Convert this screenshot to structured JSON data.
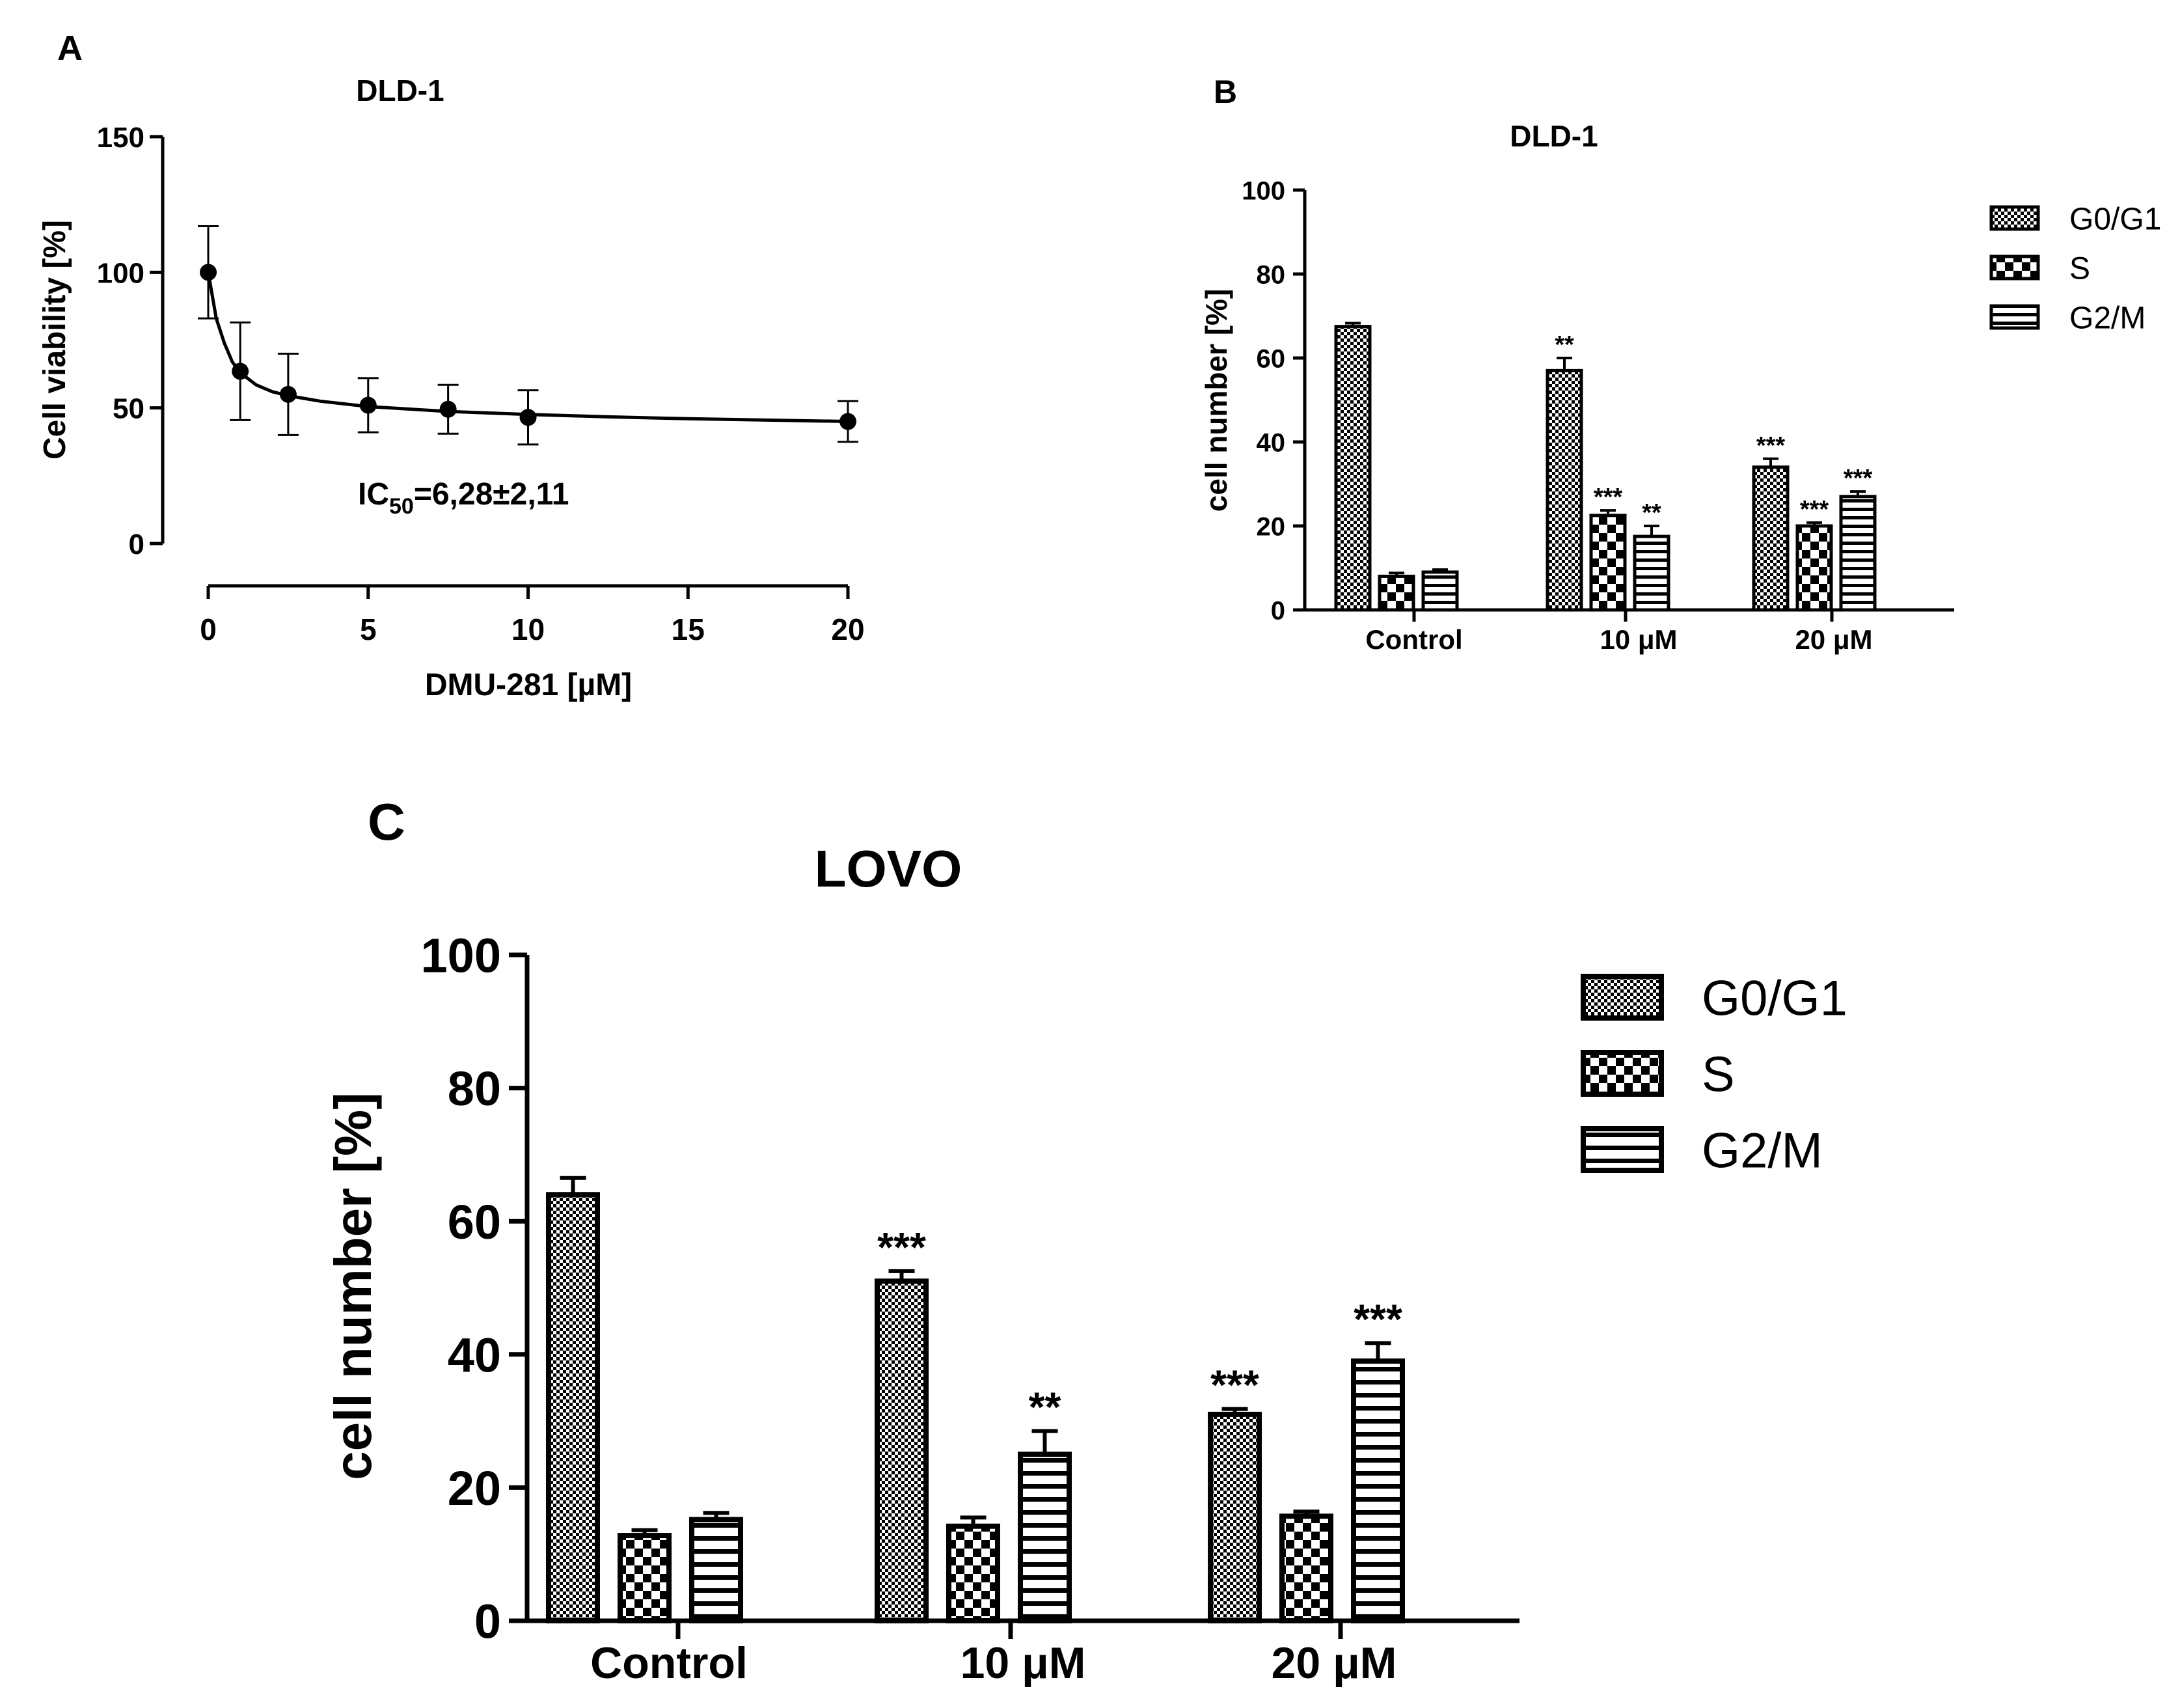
{
  "chart_data": [
    {
      "id": "A",
      "panel_label": "A",
      "type": "scatter",
      "title": "DLD-1",
      "xlabel": "DMU-281 [µM]",
      "ylabel": "Cell viability [%]",
      "xlim": [
        0,
        20
      ],
      "ylim": [
        0,
        150
      ],
      "xticks": [
        "0",
        "5",
        "10",
        "15",
        "20"
      ],
      "xtick_values": [
        0,
        5,
        10,
        15,
        20
      ],
      "yticks": [
        "0",
        "50",
        "100",
        "150"
      ],
      "ytick_values": [
        0,
        50,
        100,
        150
      ],
      "annotation": {
        "prefix": "IC",
        "sub": "50",
        "suffix": "=6,28±2,11"
      },
      "points": [
        {
          "x": 0,
          "y": 100,
          "err": 17
        },
        {
          "x": 1,
          "y": 63.5,
          "err": 18
        },
        {
          "x": 2.5,
          "y": 55,
          "err": 15
        },
        {
          "x": 5,
          "y": 51,
          "err": 10
        },
        {
          "x": 7.5,
          "y": 49.5,
          "err": 9
        },
        {
          "x": 10,
          "y": 46.5,
          "err": 10
        },
        {
          "x": 20,
          "y": 45,
          "err": 7.5
        }
      ],
      "curve": [
        {
          "x": 0,
          "y": 100
        },
        {
          "x": 0.25,
          "y": 83
        },
        {
          "x": 0.5,
          "y": 74
        },
        {
          "x": 0.75,
          "y": 67
        },
        {
          "x": 1,
          "y": 63
        },
        {
          "x": 1.5,
          "y": 58.5
        },
        {
          "x": 2,
          "y": 56
        },
        {
          "x": 2.5,
          "y": 54.5
        },
        {
          "x": 3.5,
          "y": 52.5
        },
        {
          "x": 5,
          "y": 50.5
        },
        {
          "x": 7.5,
          "y": 48.7
        },
        {
          "x": 10,
          "y": 47.6
        },
        {
          "x": 12.5,
          "y": 46.7
        },
        {
          "x": 15,
          "y": 46
        },
        {
          "x": 17.5,
          "y": 45.5
        },
        {
          "x": 20,
          "y": 45
        }
      ]
    },
    {
      "id": "B",
      "panel_label": "B",
      "type": "bar",
      "title": "DLD-1",
      "ylabel": "cell number [%]",
      "ylim": [
        0,
        100
      ],
      "yticks": [
        "0",
        "20",
        "40",
        "60",
        "80",
        "100"
      ],
      "ytick_values": [
        0,
        20,
        40,
        60,
        80,
        100
      ],
      "categories": [
        "Control",
        "10 μM",
        "20 μM"
      ],
      "legend": [
        "G0/G1",
        "S",
        "G2/M"
      ],
      "series": [
        {
          "name": "G0/G1",
          "values": [
            67.5,
            57,
            34
          ],
          "errors": [
            0.8,
            3,
            2
          ],
          "sig": [
            "",
            "**",
            "***"
          ]
        },
        {
          "name": "S",
          "values": [
            8,
            22.5,
            20
          ],
          "errors": [
            0.8,
            1.2,
            0.8
          ],
          "sig": [
            "",
            "***",
            "***"
          ]
        },
        {
          "name": "G2/M",
          "values": [
            9,
            17.5,
            27
          ],
          "errors": [
            0.6,
            2.5,
            1.2
          ],
          "sig": [
            "",
            "**",
            "***"
          ]
        }
      ]
    },
    {
      "id": "C",
      "panel_label": "C",
      "type": "bar",
      "title": "LOVO",
      "ylabel": "cell number [%]",
      "ylim": [
        0,
        100
      ],
      "yticks": [
        "0",
        "20",
        "40",
        "60",
        "80",
        "100"
      ],
      "ytick_values": [
        0,
        20,
        40,
        60,
        80,
        100
      ],
      "categories": [
        "Control",
        "10 μM",
        "20 μM"
      ],
      "legend": [
        "G0/G1",
        "S",
        "G2/M"
      ],
      "series": [
        {
          "name": "G0/G1",
          "values": [
            64,
            51,
            31
          ],
          "errors": [
            2.5,
            1.5,
            0.8
          ],
          "sig": [
            "",
            "***",
            "***"
          ]
        },
        {
          "name": "S",
          "values": [
            12.8,
            14.2,
            15.7
          ],
          "errors": [
            0.8,
            1.3,
            0.7
          ],
          "sig": [
            "",
            "",
            ""
          ]
        },
        {
          "name": "G2/M",
          "values": [
            15.2,
            25,
            39
          ],
          "errors": [
            1.0,
            3.5,
            2.7
          ],
          "sig": [
            "",
            "**",
            "***"
          ]
        }
      ]
    }
  ]
}
